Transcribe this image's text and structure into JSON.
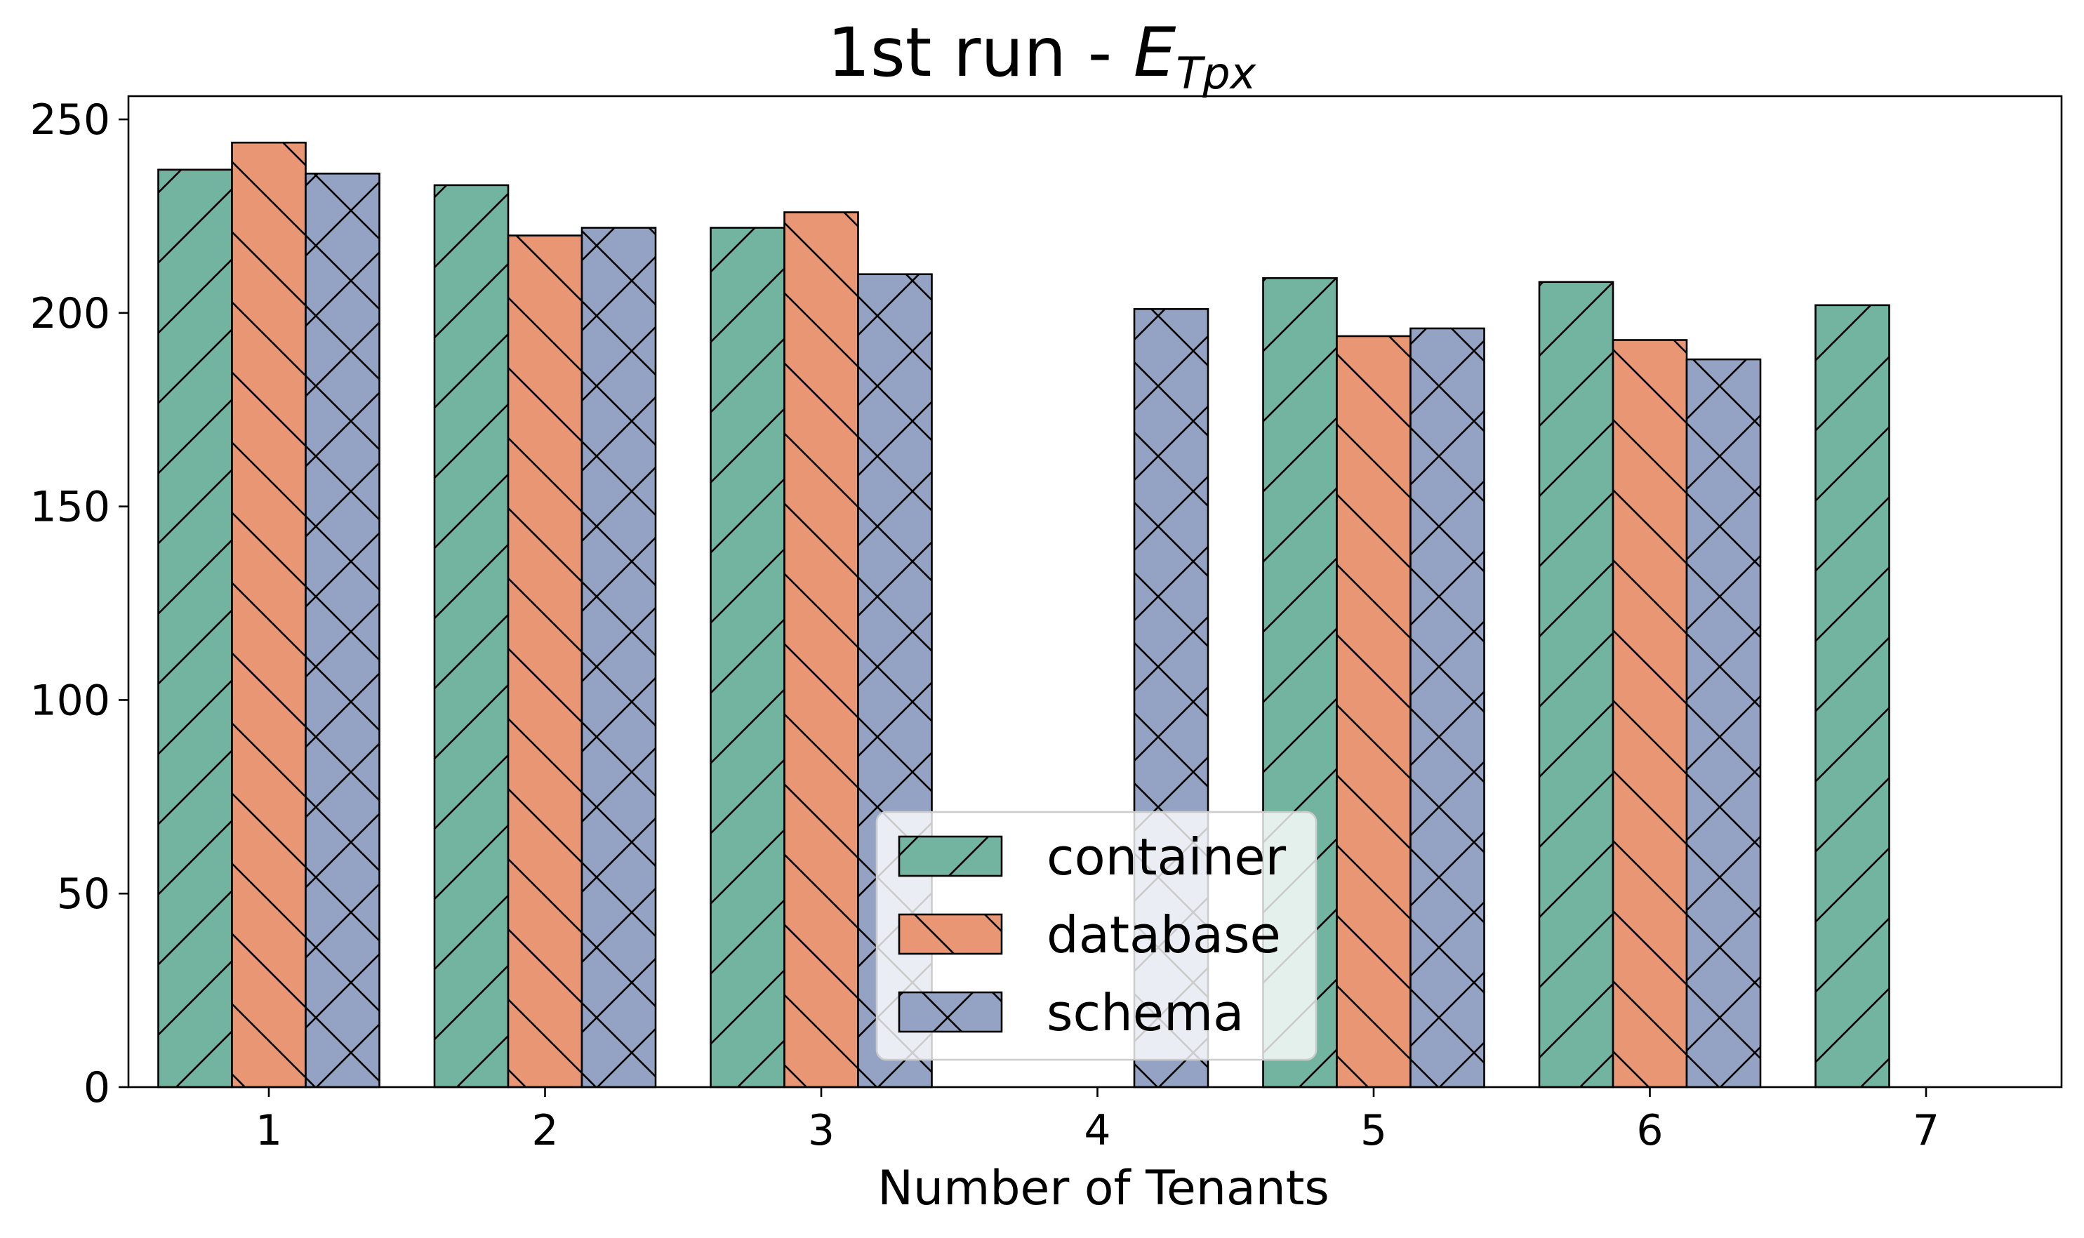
{
  "chart_data": {
    "type": "bar",
    "title": {
      "prefix": "1st run - ",
      "math": "E",
      "subscript": "Tpx"
    },
    "xlabel": "Number of Tenants",
    "ylabel": "",
    "categories": [
      "1",
      "2",
      "3",
      "4",
      "5",
      "6",
      "7"
    ],
    "ylim": [
      0,
      256
    ],
    "yticks": [
      0,
      50,
      100,
      150,
      200,
      250
    ],
    "grid": false,
    "legend_placement": "lower center",
    "series": [
      {
        "name": "container",
        "color": "#72b4a0",
        "hatch": "forward-diagonal",
        "values": [
          237,
          233,
          222,
          null,
          209,
          208,
          202
        ]
      },
      {
        "name": "database",
        "color": "#e99675",
        "hatch": "backward-diagonal",
        "values": [
          244,
          220,
          226,
          null,
          194,
          193,
          null
        ]
      },
      {
        "name": "schema",
        "color": "#94a3c4",
        "hatch": "cross",
        "values": [
          236,
          222,
          210,
          201,
          196,
          188,
          null
        ]
      }
    ]
  }
}
